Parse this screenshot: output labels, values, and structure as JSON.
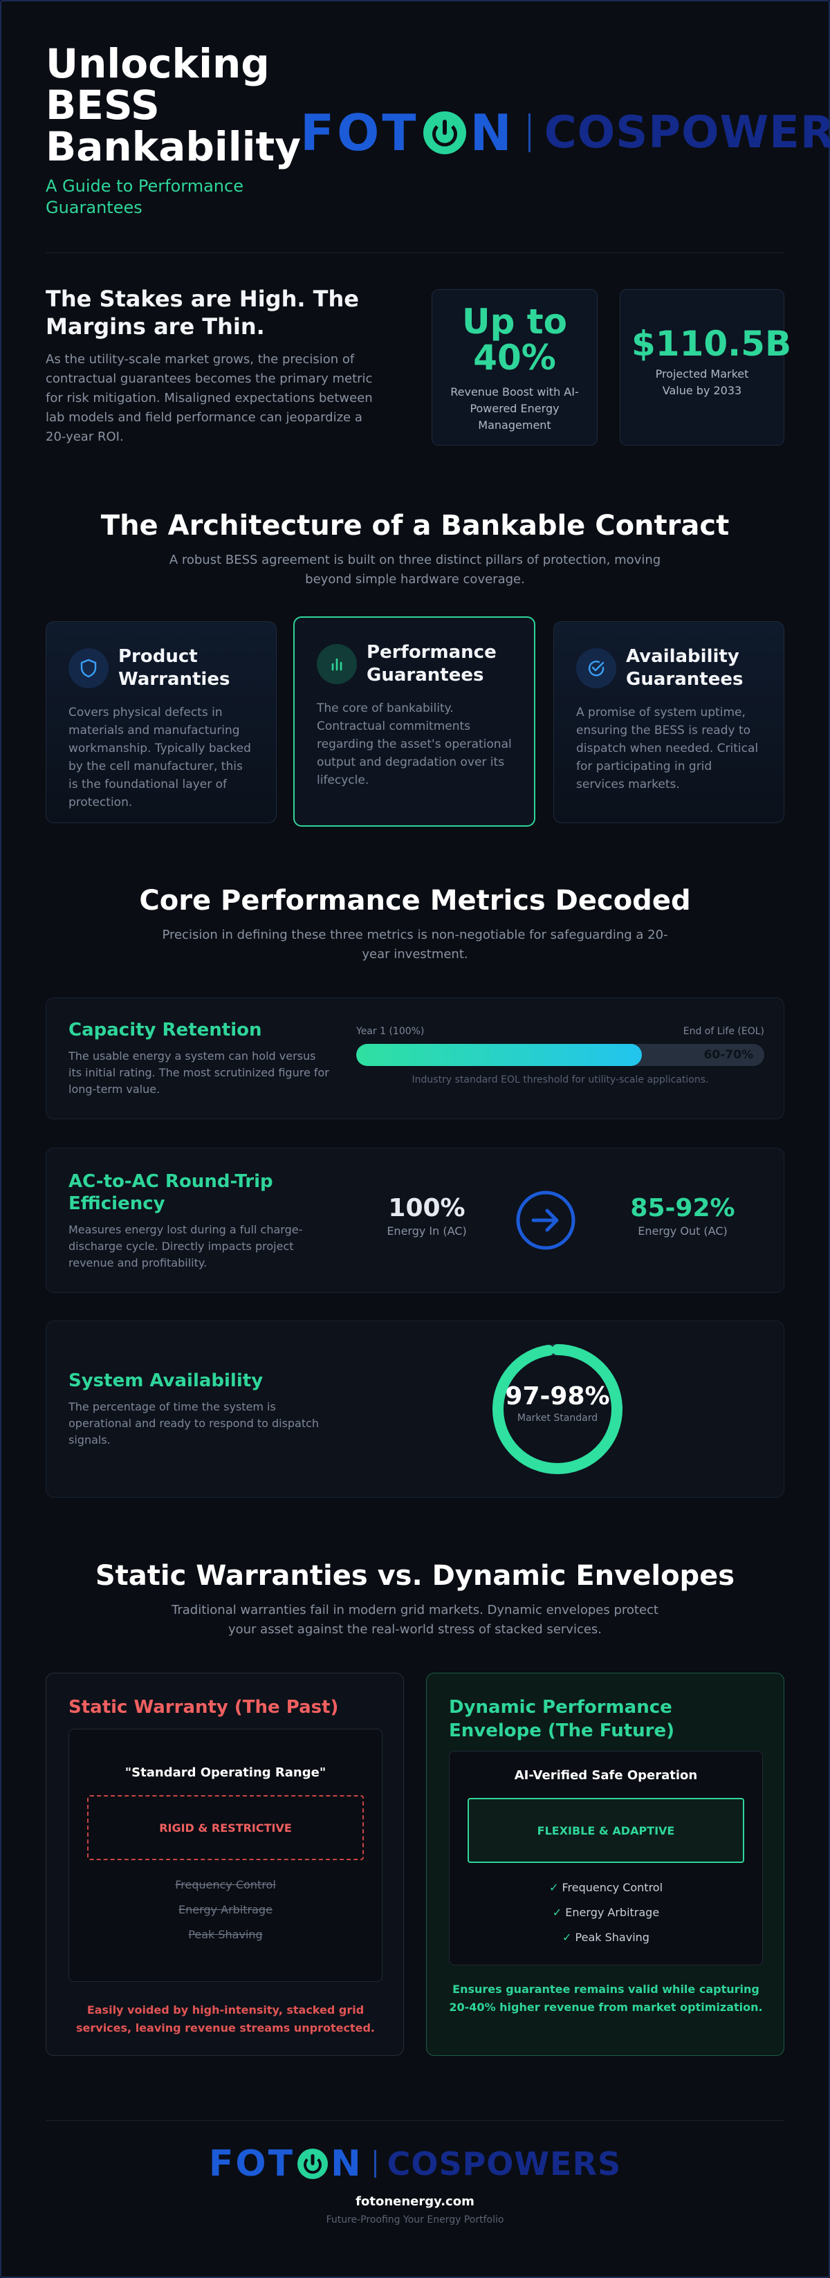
{
  "hero": {
    "title": "Unlocking BESS Bankability",
    "subtitle": "A Guide to Performance Guarantees",
    "logo_left": "FOTON",
    "logo_left_a": "FOT",
    "logo_left_b": "N",
    "logo_right": "COSPOWERS"
  },
  "stakes": {
    "title": "The Stakes are High. The Margins are Thin.",
    "body": "As the utility-scale market grows, the precision of contractual guarantees becomes the primary metric for risk mitigation. Misaligned expectations between lab models and field performance can jeopardize a 20-year ROI.",
    "stats": [
      {
        "value": "Up to 40%",
        "label": "Revenue Boost with AI-Powered Energy Management"
      },
      {
        "value": "$110.5B",
        "label": "Projected Market Value by 2033"
      }
    ]
  },
  "architecture": {
    "title": "The Architecture of a Bankable Contract",
    "subtitle": "A robust BESS agreement is built on three distinct pillars of protection, moving beyond simple hardware coverage.",
    "pillars": [
      {
        "icon": "shield-icon",
        "title": "Product Warranties",
        "body": "Covers physical defects in materials and manufacturing workmanship. Typically backed by the cell manufacturer, this is the foundational layer of protection."
      },
      {
        "icon": "bar-chart-icon",
        "title": "Performance Guarantees",
        "body": "The core of bankability. Contractual commitments regarding the asset's operational output and degradation over its lifecycle."
      },
      {
        "icon": "check-circle-icon",
        "title": "Availability Guarantees",
        "body": "A promise of system uptime, ensuring the BESS is ready to dispatch when needed. Critical for participating in grid services markets."
      }
    ]
  },
  "metrics": {
    "title": "Core Performance Metrics Decoded",
    "subtitle": "Precision in defining these three metrics is non-negotiable for safeguarding a 20-year investment.",
    "capacity": {
      "title": "Capacity Retention",
      "desc": "The usable energy a system can hold versus its initial rating. The most scrutinized figure for long-term value.",
      "start_label": "Year 1 (100%)",
      "end_label": "End of Life (EOL)",
      "eol_value": "60-70%",
      "fill_fraction": 0.7,
      "note": "Industry standard EOL threshold for utility-scale applications."
    },
    "rte": {
      "title": "AC-to-AC Round-Trip Efficiency",
      "desc": "Measures energy lost during a full charge-discharge cycle. Directly impacts project revenue and profitability.",
      "in_value": "100%",
      "in_label": "Energy In (AC)",
      "out_value": "85-92%",
      "out_label": "Energy Out (AC)"
    },
    "availability": {
      "title": "System Availability",
      "desc": "The percentage of time the system is operational and ready to respond to dispatch signals.",
      "value": "97-98%",
      "label": "Market Standard",
      "ring_fraction": 0.975
    }
  },
  "compare": {
    "title": "Static Warranties vs. Dynamic Envelopes",
    "subtitle": "Traditional warranties fail in modern grid markets. Dynamic envelopes protect your asset against the real-world stress of stacked services.",
    "static": {
      "title": "Static Warranty (The Past)",
      "heading": "\"Standard Operating Range\"",
      "tag": "RIGID & RESTRICTIVE",
      "items": [
        "Frequency Control",
        "Energy Arbitrage",
        "Peak Shaving"
      ],
      "foot": "Easily voided by high-intensity, stacked grid services, leaving revenue streams unprotected."
    },
    "dynamic": {
      "title": "Dynamic Performance Envelope (The Future)",
      "heading": "AI-Verified Safe Operation",
      "tag": "FLEXIBLE & ADAPTIVE",
      "items": [
        "Frequency Control",
        "Energy Arbitrage",
        "Peak Shaving"
      ],
      "foot": "Ensures guarantee remains valid while capturing 20-40% higher revenue from market optimization."
    }
  },
  "footer": {
    "url": "fotonenergy.com",
    "tagline": "Future-Proofing Your Energy Portfolio"
  },
  "colors": {
    "accent_green": "#2fd69a",
    "accent_blue": "#1c5bd8",
    "accent_red": "#e25555",
    "background": "#0a0d13"
  }
}
